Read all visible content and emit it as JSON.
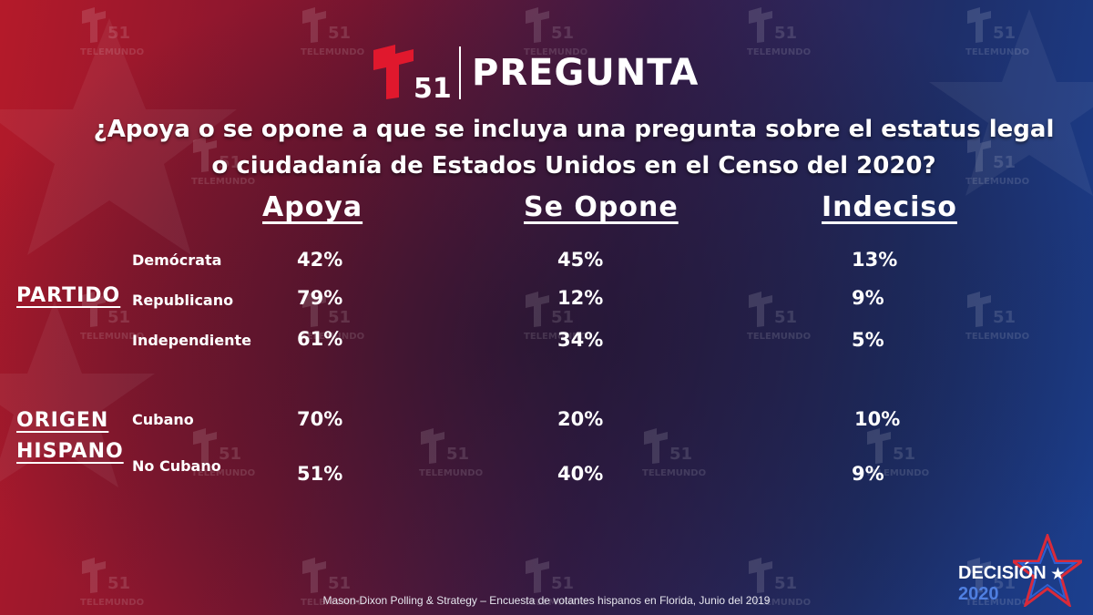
{
  "header": {
    "logo_text": "T 51",
    "title": "PREGUNTA"
  },
  "question": {
    "line1": "¿Apoya o se opone a que se incluya una pregunta sobre el estatus legal",
    "line2": "o ciudadanía de Estados Unidos en el Censo del 2020?"
  },
  "columns": [
    "Apoya",
    "Se Opone",
    "Indeciso"
  ],
  "groups": [
    {
      "label": "PARTIDO",
      "rows": [
        {
          "label": "Demócrata",
          "values": [
            "42%",
            "45%",
            "13%"
          ]
        },
        {
          "label": "Republicano",
          "values": [
            "79%",
            "12%",
            "9%"
          ]
        },
        {
          "label": "Independiente",
          "values": [
            "61%",
            "34%",
            "5%"
          ]
        }
      ]
    },
    {
      "label_line1": "ORIGEN",
      "label_line2": "HISPANO",
      "rows": [
        {
          "label": "Cubano",
          "values": [
            "70%",
            "20%",
            "10%"
          ]
        },
        {
          "label": "No Cubano",
          "values": [
            "51%",
            "40%",
            "9%"
          ]
        }
      ]
    }
  ],
  "footer": {
    "source": "Mason-Dixon  Polling & Strategy – Encuesta de votantes hispanos en Florida, Junio del 2019"
  },
  "branding": {
    "decision": "DECISIÓN",
    "star": "★",
    "year": "2020",
    "watermark_text": "TELEMUNDO",
    "watermark_num": "51"
  },
  "colors": {
    "logo_red": "#e0182d",
    "accent_blue": "#4f7fe0"
  }
}
